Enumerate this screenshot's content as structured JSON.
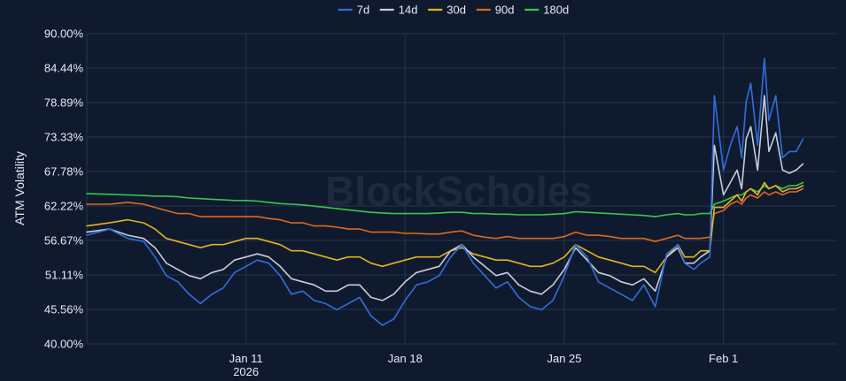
{
  "chart_data": {
    "type": "line",
    "ylabel": "ATM Volatility",
    "watermark": "BlockScholes",
    "yticks": [
      "90.00%",
      "84.44%",
      "78.89%",
      "73.33%",
      "67.78%",
      "62.22%",
      "56.67%",
      "51.11%",
      "45.56%",
      "40.00%"
    ],
    "ylim": [
      40.0,
      90.0
    ],
    "xlim": [
      0,
      33
    ],
    "xticks": [
      {
        "x": 7,
        "label": "Jan 11",
        "sublabel": "2026"
      },
      {
        "x": 14,
        "label": "Jan 18",
        "sublabel": ""
      },
      {
        "x": 21,
        "label": "Jan 25",
        "sublabel": ""
      },
      {
        "x": 28,
        "label": "Feb 1",
        "sublabel": ""
      }
    ],
    "grid": true,
    "legend_position": "top-center",
    "series": [
      {
        "name": "7d",
        "color": "#2e6fdb",
        "x": [
          0,
          1,
          1.8,
          2.5,
          3,
          3.5,
          4,
          4.5,
          5,
          5.5,
          6,
          6.5,
          7,
          7.5,
          8,
          8.5,
          9,
          9.5,
          10,
          10.5,
          11,
          11.5,
          12,
          12.5,
          13,
          13.5,
          14,
          14.5,
          15,
          15.5,
          16,
          16.5,
          17,
          17.5,
          18,
          18.5,
          19,
          19.5,
          20,
          20.5,
          21,
          21.5,
          22,
          22.5,
          23,
          23.5,
          24,
          24.5,
          25,
          25.5,
          26,
          26.3,
          26.7,
          27,
          27.4,
          27.6,
          28,
          28.3,
          28.6,
          28.8,
          29,
          29.2,
          29.5,
          29.8,
          30,
          30.3,
          30.6,
          30.9,
          31.2,
          31.5
        ],
        "y": [
          57.5,
          58.5,
          57,
          56.5,
          54,
          51,
          50,
          48,
          46.5,
          48,
          49,
          51.5,
          52.5,
          53.5,
          53,
          51,
          48,
          48.5,
          47,
          46.5,
          45.5,
          46.5,
          47.5,
          44.5,
          43,
          44,
          47,
          49.5,
          50,
          51,
          54,
          56,
          53,
          51,
          49,
          50,
          47.5,
          46,
          45.5,
          47,
          51,
          56,
          54,
          50,
          49,
          48,
          47,
          49.5,
          46,
          54.5,
          56,
          53,
          52,
          53,
          54,
          80,
          68,
          72,
          75,
          70,
          79,
          82,
          72,
          86,
          76,
          80,
          70,
          71,
          71,
          73
        ]
      },
      {
        "name": "14d",
        "color": "#c8ccd8",
        "x": [
          0,
          1,
          1.8,
          2.5,
          3,
          3.5,
          4,
          4.5,
          5,
          5.5,
          6,
          6.5,
          7,
          7.5,
          8,
          8.5,
          9,
          9.5,
          10,
          10.5,
          11,
          11.5,
          12,
          12.5,
          13,
          13.5,
          14,
          14.5,
          15,
          15.5,
          16,
          16.5,
          17,
          17.5,
          18,
          18.5,
          19,
          19.5,
          20,
          20.5,
          21,
          21.5,
          22,
          22.5,
          23,
          23.5,
          24,
          24.5,
          25,
          25.5,
          26,
          26.3,
          26.7,
          27,
          27.4,
          27.6,
          28,
          28.3,
          28.6,
          28.8,
          29,
          29.2,
          29.5,
          29.8,
          30,
          30.3,
          30.6,
          30.9,
          31.2,
          31.5
        ],
        "y": [
          58,
          58.5,
          57.5,
          57,
          55.5,
          53,
          52,
          51,
          50.5,
          51.5,
          52,
          53.5,
          54,
          54.5,
          54,
          52.5,
          50.5,
          50,
          49.5,
          48.5,
          48.5,
          49.5,
          49.5,
          47.5,
          47,
          48,
          50,
          51.5,
          52,
          52.5,
          55,
          56,
          54,
          52.5,
          51,
          51.5,
          49.5,
          48.5,
          48,
          49.5,
          52,
          55.5,
          53.5,
          51.5,
          51,
          50,
          49.5,
          50.5,
          48.5,
          54,
          55.5,
          53,
          53,
          54,
          55,
          72,
          64,
          66,
          68,
          65,
          73,
          75,
          68,
          80,
          71,
          74,
          68,
          67.5,
          68,
          69
        ]
      },
      {
        "name": "30d",
        "color": "#e0b321",
        "x": [
          0,
          1,
          1.8,
          2.5,
          3,
          3.5,
          4,
          4.5,
          5,
          5.5,
          6,
          6.5,
          7,
          7.5,
          8,
          8.5,
          9,
          9.5,
          10,
          10.5,
          11,
          11.5,
          12,
          12.5,
          13,
          13.5,
          14,
          14.5,
          15,
          15.5,
          16,
          16.5,
          17,
          17.5,
          18,
          18.5,
          19,
          19.5,
          20,
          20.5,
          21,
          21.5,
          22,
          22.5,
          23,
          23.5,
          24,
          24.5,
          25,
          25.5,
          26,
          26.3,
          26.7,
          27,
          27.4,
          27.6,
          28,
          28.3,
          28.6,
          28.8,
          29,
          29.2,
          29.5,
          29.8,
          30,
          30.3,
          30.6,
          30.9,
          31.2,
          31.5
        ],
        "y": [
          59,
          59.5,
          60,
          59.5,
          58.5,
          57,
          56.5,
          56,
          55.5,
          56,
          56,
          56.5,
          57,
          57,
          56.5,
          56,
          55,
          55,
          54.5,
          54,
          53.5,
          54,
          54,
          53,
          52.5,
          53,
          53.5,
          54,
          54,
          54,
          55,
          55.5,
          54.5,
          54,
          53.5,
          53.5,
          53,
          52.5,
          52.5,
          53,
          54,
          56,
          55,
          54,
          53.5,
          53,
          52.5,
          52.5,
          51.5,
          54,
          56,
          54,
          54,
          55,
          55,
          62,
          62,
          63,
          64,
          63,
          64.5,
          65,
          64,
          66,
          65,
          65.5,
          64.5,
          65,
          65,
          65.5
        ]
      },
      {
        "name": "90d",
        "color": "#d86b1e",
        "x": [
          0,
          1,
          1.8,
          2.5,
          3,
          3.5,
          4,
          4.5,
          5,
          5.5,
          6,
          6.5,
          7,
          7.5,
          8,
          8.5,
          9,
          9.5,
          10,
          10.5,
          11,
          11.5,
          12,
          12.5,
          13,
          13.5,
          14,
          14.5,
          15,
          15.5,
          16,
          16.5,
          17,
          17.5,
          18,
          18.5,
          19,
          19.5,
          20,
          20.5,
          21,
          21.5,
          22,
          22.5,
          23,
          23.5,
          24,
          24.5,
          25,
          25.5,
          26,
          26.3,
          26.7,
          27,
          27.4,
          27.6,
          28,
          28.3,
          28.6,
          28.8,
          29,
          29.2,
          29.5,
          29.8,
          30,
          30.3,
          30.6,
          30.9,
          31.2,
          31.5
        ],
        "y": [
          62.5,
          62.5,
          62.8,
          62.5,
          62,
          61.5,
          61,
          61,
          60.5,
          60.5,
          60.5,
          60.5,
          60.5,
          60.5,
          60.2,
          60,
          59.5,
          59.5,
          59,
          59,
          58.8,
          58.5,
          58.5,
          58,
          58,
          58,
          57.8,
          57.8,
          57.7,
          57.7,
          58,
          58.2,
          57.5,
          57.2,
          57,
          57.3,
          57,
          57,
          57,
          57,
          57.3,
          58,
          57.5,
          57.5,
          57.3,
          57,
          57,
          57,
          56.5,
          57,
          57.5,
          57,
          57,
          57,
          57.2,
          61,
          61.5,
          62.5,
          63,
          62.5,
          63.5,
          64,
          63.5,
          64.5,
          64,
          64.5,
          64,
          64.5,
          64.5,
          65
        ]
      },
      {
        "name": "180d",
        "color": "#37c74b",
        "x": [
          0,
          1,
          1.8,
          2.5,
          3,
          3.5,
          4,
          4.5,
          5,
          5.5,
          6,
          6.5,
          7,
          7.5,
          8,
          8.5,
          9,
          9.5,
          10,
          10.5,
          11,
          11.5,
          12,
          12.5,
          13,
          13.5,
          14,
          14.5,
          15,
          15.5,
          16,
          16.5,
          17,
          17.5,
          18,
          18.5,
          19,
          19.5,
          20,
          20.5,
          21,
          21.5,
          22,
          22.5,
          23,
          23.5,
          24,
          24.5,
          25,
          25.5,
          26,
          26.3,
          26.7,
          27,
          27.4,
          27.6,
          28,
          28.3,
          28.6,
          28.8,
          29,
          29.2,
          29.5,
          29.8,
          30,
          30.3,
          30.6,
          30.9,
          31.2,
          31.5
        ],
        "y": [
          64.2,
          64.1,
          64,
          63.9,
          63.8,
          63.8,
          63.7,
          63.5,
          63.4,
          63.3,
          63.2,
          63.1,
          63.1,
          63,
          62.8,
          62.6,
          62.5,
          62.4,
          62.2,
          62,
          61.8,
          61.6,
          61.4,
          61.2,
          61.1,
          61,
          61,
          61,
          61,
          61.1,
          61.2,
          61.2,
          61,
          61,
          60.9,
          60.9,
          60.8,
          60.8,
          60.8,
          60.9,
          61,
          61.3,
          61.2,
          61.1,
          61,
          60.9,
          60.8,
          60.7,
          60.5,
          60.8,
          61,
          60.8,
          60.8,
          61,
          61,
          62.5,
          63,
          63.5,
          64,
          64,
          64.5,
          65,
          64.5,
          65.5,
          65,
          65.5,
          65,
          65.5,
          65.5,
          66
        ]
      }
    ]
  }
}
